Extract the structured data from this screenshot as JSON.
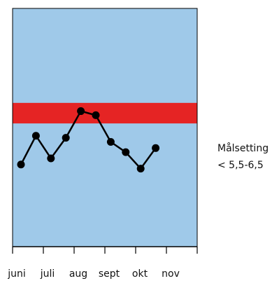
{
  "chart_data": {
    "type": "line",
    "x": [
      "juni",
      "juni/juli",
      "juli",
      "juli/aug",
      "aug",
      "aug/sept",
      "sept",
      "sept/okt",
      "okt",
      "okt/nov"
    ],
    "values": [
      6.0,
      6.7,
      6.15,
      6.65,
      7.3,
      7.2,
      6.55,
      6.3,
      5.9,
      6.4
    ],
    "tick_labels": [
      "juni",
      "juli",
      "aug",
      "sept",
      "okt",
      "nov"
    ],
    "ylim": [
      4.0,
      9.8
    ],
    "target_band": {
      "low": 7.0,
      "high": 7.5,
      "color": "#e52424"
    },
    "background_color": "#9fc9e9",
    "line_color": "#000000",
    "title": "",
    "xlabel": "",
    "ylabel": ""
  },
  "legend": {
    "line1": "Målsetting",
    "line2": "< 5,5-6,5"
  }
}
